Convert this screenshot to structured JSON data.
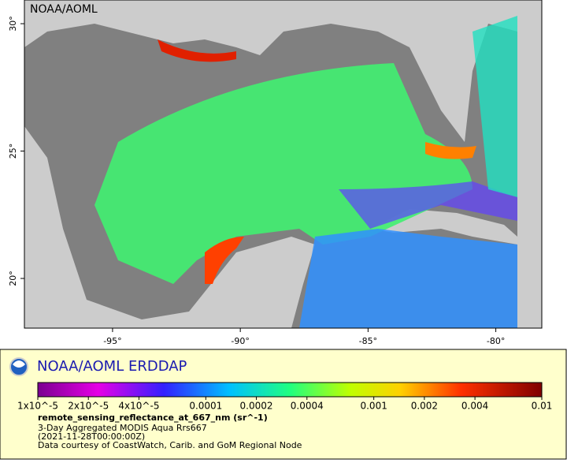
{
  "map": {
    "label": "NOAA/AOML",
    "xlim": [
      -98.45,
      -78.2
    ],
    "ylim": [
      18.05,
      30.93
    ],
    "xticks": [
      {
        "value": -95,
        "label": "-95°"
      },
      {
        "value": -90,
        "label": "-90°"
      },
      {
        "value": -85,
        "label": "-85°"
      },
      {
        "value": -80,
        "label": "-80°"
      }
    ],
    "yticks": [
      {
        "value": 20,
        "label": "20°"
      },
      {
        "value": 25,
        "label": "25°"
      },
      {
        "value": 30,
        "label": "30°"
      }
    ]
  },
  "legend": {
    "brand": "NOAA/AOML ERDDAP",
    "colorbar": {
      "lim": [
        1e-05,
        0.01
      ],
      "log": true,
      "ticks": [
        {
          "value": 1e-05,
          "label": "1x10^-5"
        },
        {
          "value": 2e-05,
          "label": "2x10^-5"
        },
        {
          "value": 4e-05,
          "label": "4x10^-5"
        },
        {
          "value": 0.0001,
          "label": "0.0001"
        },
        {
          "value": 0.0002,
          "label": "0.0002"
        },
        {
          "value": 0.0004,
          "label": "0.0004"
        },
        {
          "value": 0.001,
          "label": "0.001"
        },
        {
          "value": 0.002,
          "label": "0.002"
        },
        {
          "value": 0.004,
          "label": "0.004"
        },
        {
          "value": 0.01,
          "label": "0.01"
        }
      ]
    },
    "variable": "remote_sensing_reflectance_at_667_nm (sr^-1)",
    "lines": [
      "3-Day Aggregated MODIS Aqua Rrs667",
      "(2021-11-28T00:00:00Z)",
      "Data courtesy of CoastWatch, Carib. and GoM Regional Node"
    ]
  }
}
